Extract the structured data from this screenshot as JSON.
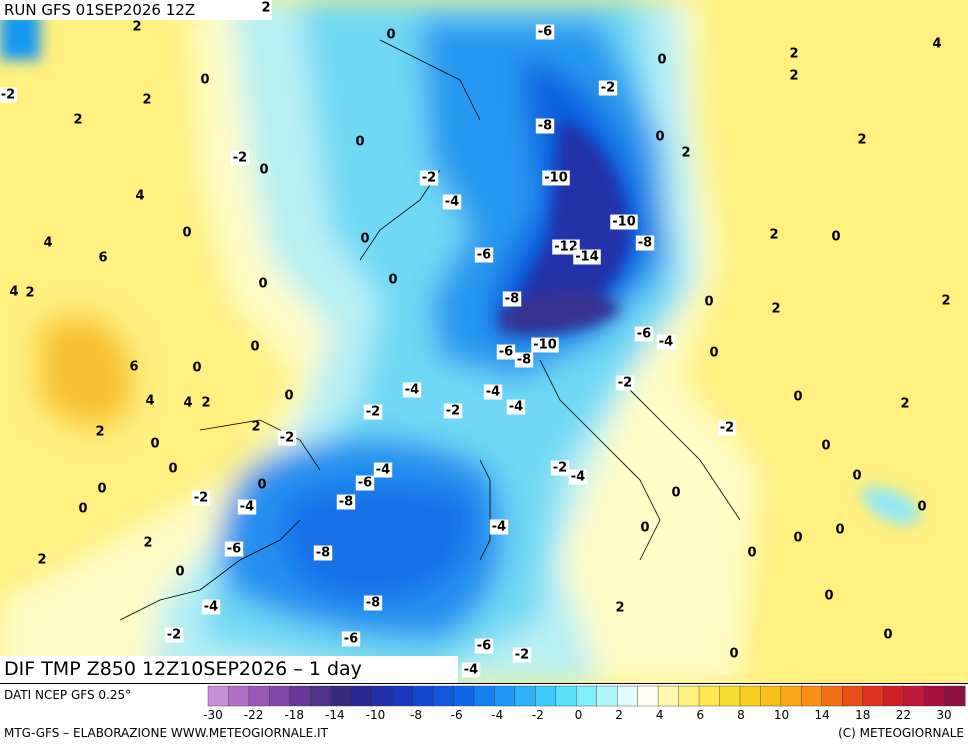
{
  "header": {
    "run": "RUN GFS 01SEP2026 12Z",
    "field": "DIF TMP Z850 12Z10SEP2026 – 1 day"
  },
  "contour_labels": [
    2,
    2,
    0,
    -6,
    0,
    2,
    4,
    2,
    0,
    -2,
    2,
    -2,
    2,
    -8,
    0,
    2,
    2,
    0,
    -2,
    0,
    -2,
    -10,
    4,
    -4,
    -10,
    0,
    0,
    -8,
    2,
    0,
    4,
    -6,
    -12,
    -14,
    6,
    0,
    4,
    2,
    0,
    -8,
    0,
    2,
    2,
    0,
    -6,
    -4,
    -6,
    -10,
    -8,
    0,
    0,
    6,
    -4,
    -4,
    -2,
    0,
    4,
    4,
    2,
    -2,
    -2,
    -4,
    0,
    2,
    2,
    2,
    -2,
    -2,
    0,
    0,
    -4,
    -2,
    -4,
    0,
    -6,
    0,
    0,
    0,
    0,
    -2,
    -8,
    -4,
    0,
    0,
    -4,
    0,
    0,
    2,
    -6,
    -8,
    0,
    0,
    2,
    0,
    -8,
    -4,
    2,
    0,
    -2,
    -6,
    0,
    -6,
    -2,
    0,
    -4
  ],
  "legend": {
    "source": "DATI NCEP GFS 0.25°",
    "colors": [
      "#c890d8",
      "#b070c8",
      "#9858b8",
      "#8048a8",
      "#683898",
      "#503088",
      "#382880",
      "#282890",
      "#2030a8",
      "#1838c0",
      "#1048d0",
      "#1058e0",
      "#1068e8",
      "#1480f0",
      "#2098f8",
      "#30b0f8",
      "#40c8f8",
      "#58e0f8",
      "#80f0f8",
      "#b0f8f8",
      "#e0fcfc",
      "#fffff0",
      "#fff8b0",
      "#fff080",
      "#fce850",
      "#f8e030",
      "#f8d020",
      "#f8c018",
      "#f8a818",
      "#f89018",
      "#f07018",
      "#e85018",
      "#e03020",
      "#d02028",
      "#c01838",
      "#a81040",
      "#901040"
    ],
    "ticks": [
      -30,
      -22,
      -18,
      -14,
      -10,
      -8,
      -6,
      -4,
      -2,
      0,
      2,
      4,
      6,
      8,
      10,
      14,
      18,
      22,
      30
    ]
  },
  "footer": {
    "left": "MTG-GFS – ELABORAZIONE WWW.METEOGIORNALE.IT",
    "right": "(C) METEOGIORNALE"
  }
}
